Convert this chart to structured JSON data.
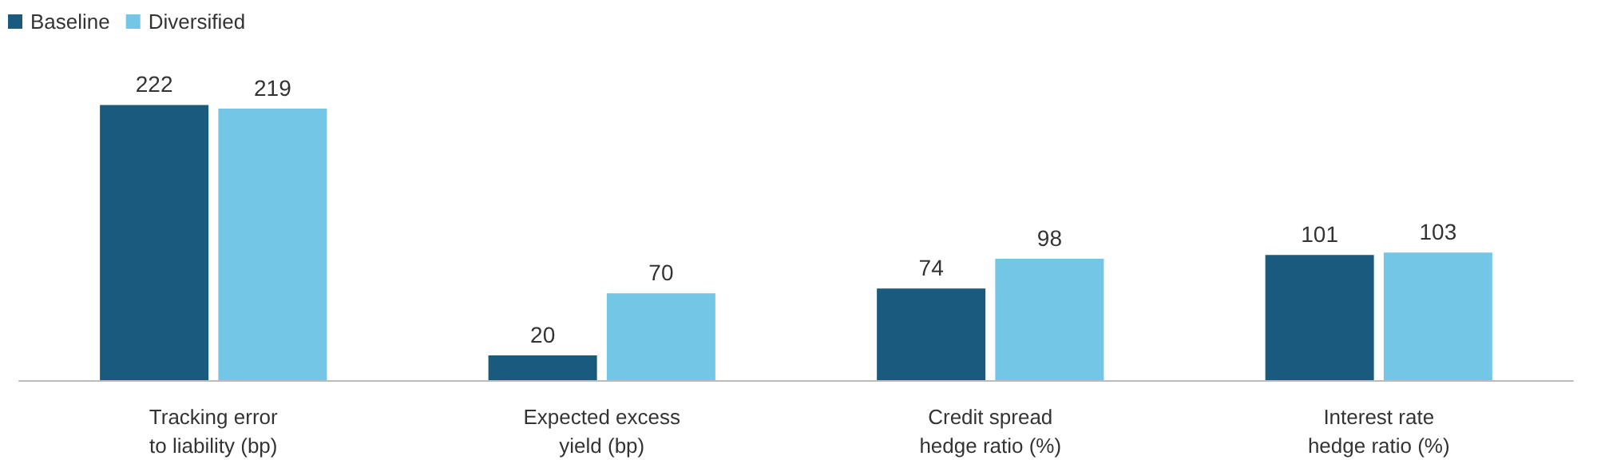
{
  "chart_data": {
    "type": "bar",
    "categories": [
      "Tracking error\nto liability (bp)",
      "Expected excess\nyield (bp)",
      "Credit spread\nhedge ratio (%)",
      "Interest rate\nhedge ratio (%)"
    ],
    "series": [
      {
        "name": "Baseline",
        "color": "#1a5a7e",
        "values": [
          222,
          20,
          74,
          101
        ]
      },
      {
        "name": "Diversified",
        "color": "#74c6e6",
        "values": [
          219,
          70,
          98,
          103
        ]
      }
    ],
    "data_labels": true,
    "legend": "top left",
    "grid": false,
    "tick_labels": "x"
  }
}
